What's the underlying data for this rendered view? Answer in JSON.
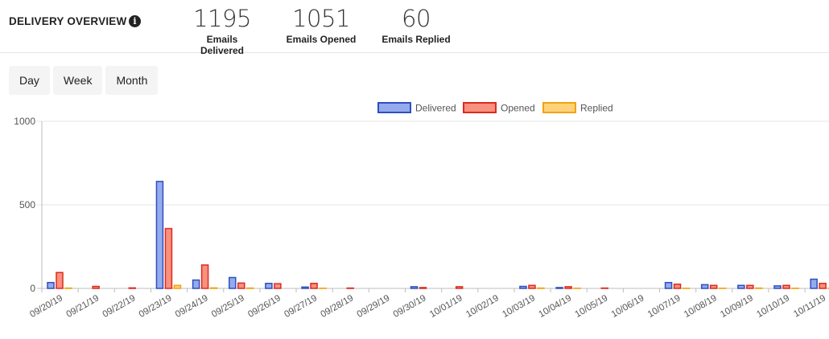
{
  "header": {
    "title": "DELIVERY OVERVIEW",
    "info_icon": "info-icon",
    "stats": [
      {
        "value": "1195",
        "label": "Emails Delivered"
      },
      {
        "value": "1051",
        "label": "Emails Opened"
      },
      {
        "value": "60",
        "label": "Emails Replied"
      }
    ]
  },
  "range_buttons": [
    "Day",
    "Week",
    "Month"
  ],
  "colors": {
    "delivered_fill": "#94abee",
    "delivered_stroke": "#2f4fbf",
    "opened_fill": "#f8917e",
    "opened_stroke": "#dc2b1f",
    "replied_fill": "#fdd27a",
    "replied_stroke": "#f2a20c"
  },
  "chart_data": {
    "type": "bar",
    "title": "",
    "xlabel": "",
    "ylabel": "",
    "ylim": [
      0,
      1000
    ],
    "yticks": [
      0,
      500,
      1000
    ],
    "grid": true,
    "legend_position": "top-center",
    "categories": [
      "09/20/19",
      "09/21/19",
      "09/22/19",
      "09/23/19",
      "09/24/19",
      "09/25/19",
      "09/26/19",
      "09/27/19",
      "09/28/19",
      "09/29/19",
      "09/30/19",
      "10/01/19",
      "10/02/19",
      "10/03/19",
      "10/04/19",
      "10/05/19",
      "10/06/19",
      "10/07/19",
      "10/08/19",
      "10/09/19",
      "10/10/19",
      "10/11/19"
    ],
    "series": [
      {
        "name": "Delivered",
        "values": [
          35,
          0,
          0,
          640,
          50,
          65,
          30,
          8,
          0,
          0,
          10,
          0,
          0,
          12,
          5,
          0,
          0,
          35,
          22,
          18,
          15,
          55
        ]
      },
      {
        "name": "Opened",
        "values": [
          95,
          12,
          3,
          358,
          140,
          32,
          28,
          30,
          2,
          0,
          5,
          10,
          0,
          18,
          10,
          2,
          0,
          25,
          18,
          18,
          18,
          30
        ]
      },
      {
        "name": "Replied",
        "values": [
          2,
          0,
          0,
          18,
          3,
          2,
          0,
          1,
          0,
          0,
          0,
          0,
          0,
          2,
          1,
          0,
          0,
          1,
          1,
          2,
          1,
          2
        ]
      }
    ]
  }
}
